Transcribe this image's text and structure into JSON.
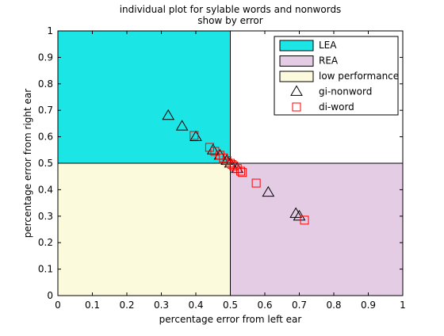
{
  "chart_data": {
    "type": "scatter",
    "title": [
      "individual plot for sylable words and nonwords",
      "show by error"
    ],
    "xlabel": "percentage error from left ear",
    "ylabel": "percentage error from right ear",
    "xlim": [
      0,
      1
    ],
    "ylim": [
      0,
      1
    ],
    "xticks": [
      "0",
      "0.1",
      "0.2",
      "0.3",
      "0.4",
      "0.5",
      "0.6",
      "0.7",
      "0.8",
      "0.9",
      "1"
    ],
    "yticks": [
      "0",
      "0.1",
      "0.2",
      "0.3",
      "0.4",
      "0.5",
      "0.6",
      "0.7",
      "0.8",
      "0.9",
      "1"
    ],
    "grid": false,
    "regions": [
      {
        "name": "LEA",
        "x": [
          0,
          0.5
        ],
        "y": [
          0.5,
          1
        ],
        "color": "#1be5e5"
      },
      {
        "name": "REA",
        "x": [
          0.5,
          1
        ],
        "y": [
          0,
          0.5
        ],
        "color": "#e5cce5"
      },
      {
        "name": "low performance",
        "x": [
          0,
          0.5
        ],
        "y": [
          0,
          0.5
        ],
        "color": "#fcfadc"
      }
    ],
    "series": [
      {
        "name": "gi-nonword",
        "marker": "triangle",
        "color": "#000000",
        "points": [
          [
            0.32,
            0.68
          ],
          [
            0.36,
            0.64
          ],
          [
            0.4,
            0.6
          ],
          [
            0.45,
            0.55
          ],
          [
            0.47,
            0.53
          ],
          [
            0.49,
            0.51
          ],
          [
            0.5,
            0.5
          ],
          [
            0.52,
            0.48
          ],
          [
            0.61,
            0.39
          ],
          [
            0.69,
            0.31
          ],
          [
            0.7,
            0.3
          ]
        ]
      },
      {
        "name": "di-word",
        "marker": "square",
        "color": "#ff0000",
        "points": [
          [
            0.395,
            0.605
          ],
          [
            0.44,
            0.56
          ],
          [
            0.455,
            0.545
          ],
          [
            0.47,
            0.53
          ],
          [
            0.48,
            0.52
          ],
          [
            0.49,
            0.51
          ],
          [
            0.5,
            0.5
          ],
          [
            0.505,
            0.495
          ],
          [
            0.51,
            0.49
          ],
          [
            0.52,
            0.48
          ],
          [
            0.53,
            0.47
          ],
          [
            0.535,
            0.465
          ],
          [
            0.575,
            0.425
          ],
          [
            0.715,
            0.285
          ]
        ]
      }
    ],
    "legend": {
      "position": "top-right",
      "entries": [
        "LEA",
        "REA",
        "low performance",
        "gi-nonword",
        "di-word"
      ]
    }
  }
}
